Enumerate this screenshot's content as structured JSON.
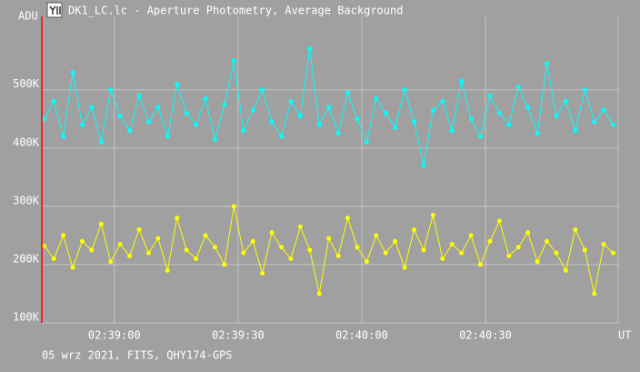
{
  "chart_data": {
    "type": "line",
    "title": "DK1_LC.lc - Aperture Photometry, Average Background",
    "ylabel": "ADU",
    "xlabel": "UT",
    "note": "05 wrz 2021, FITS, QHY174-GPS",
    "grid": true,
    "xlim": [
      9522.4,
      9662.2
    ],
    "xticks": [
      {
        "value": 9540,
        "label": "02:39:00"
      },
      {
        "value": 9570,
        "label": "02:39:30"
      },
      {
        "value": 9600,
        "label": "02:40:00"
      },
      {
        "value": 9630,
        "label": "02:40:30"
      }
    ],
    "ylim": [
      100000,
      626000
    ],
    "yticks": [
      {
        "value": 100000,
        "label": "100K"
      },
      {
        "value": 200000,
        "label": "200K"
      },
      {
        "value": 300000,
        "label": "300K"
      },
      {
        "value": 400000,
        "label": "400K"
      },
      {
        "value": 500000,
        "label": "500K"
      }
    ],
    "x": [
      9523,
      9525.3,
      9527.6,
      9529.9,
      9532.2,
      9534.5,
      9536.8,
      9539.1,
      9541.4,
      9543.7,
      9546,
      9548.3,
      9550.6,
      9552.9,
      9555.2,
      9557.5,
      9559.8,
      9562.1,
      9564.4,
      9566.7,
      9569,
      9571.3,
      9573.6,
      9575.9,
      9578.2,
      9580.5,
      9582.8,
      9585.1,
      9587.4,
      9589.7,
      9592,
      9594.3,
      9596.6,
      9598.9,
      9601.2,
      9603.5,
      9605.8,
      9608.1,
      9610.4,
      9612.7,
      9615,
      9617.3,
      9619.6,
      9621.9,
      9624.2,
      9626.5,
      9628.8,
      9631.1,
      9633.4,
      9635.7,
      9638,
      9640.3,
      9642.6,
      9644.9,
      9647.2,
      9649.5,
      9651.8,
      9654.1,
      9656.4,
      9658.7,
      9661
    ],
    "series": [
      {
        "color": "#00ffff",
        "values": [
          450000,
          480000,
          420000,
          530000,
          440000,
          470000,
          410000,
          500000,
          455000,
          430000,
          490000,
          445000,
          470000,
          420000,
          510000,
          460000,
          440000,
          485000,
          415000,
          475000,
          550000,
          430000,
          465000,
          500000,
          445000,
          420000,
          480000,
          455000,
          570000,
          440000,
          470000,
          425000,
          495000,
          450000,
          410000,
          485000,
          460000,
          435000,
          500000,
          445000,
          370000,
          465000,
          480000,
          430000,
          515000,
          450000,
          420000,
          490000,
          460000,
          440000,
          505000,
          470000,
          425000,
          545000,
          455000,
          480000,
          430000,
          500000,
          445000,
          465000,
          440000
        ]
      },
      {
        "color": "#ffff00",
        "values": [
          232000,
          210000,
          250000,
          195000,
          240000,
          225000,
          270000,
          205000,
          235000,
          215000,
          260000,
          220000,
          245000,
          190000,
          280000,
          225000,
          210000,
          250000,
          230000,
          200000,
          300000,
          220000,
          240000,
          185000,
          255000,
          230000,
          210000,
          265000,
          225000,
          150000,
          245000,
          215000,
          280000,
          230000,
          205000,
          250000,
          220000,
          240000,
          195000,
          260000,
          225000,
          285000,
          210000,
          235000,
          220000,
          250000,
          200000,
          240000,
          275000,
          215000,
          230000,
          255000,
          205000,
          240000,
          220000,
          190000,
          260000,
          225000,
          150000,
          235000,
          220000
        ]
      }
    ]
  }
}
